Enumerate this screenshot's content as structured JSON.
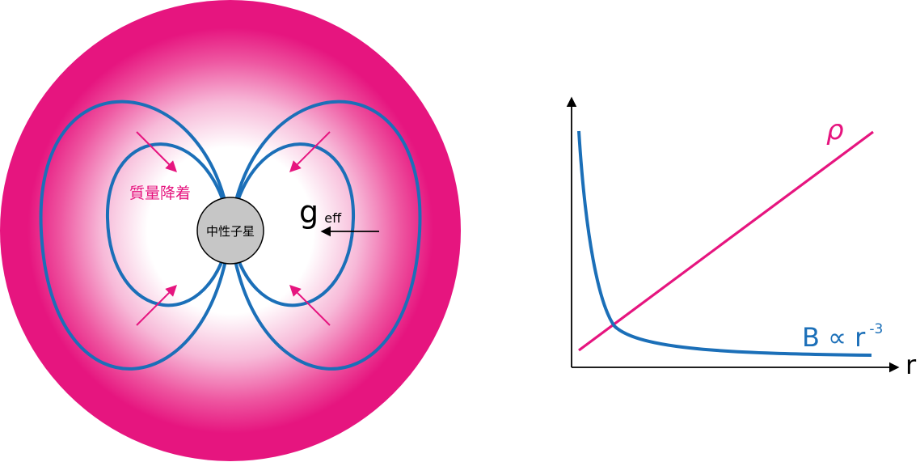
{
  "colors": {
    "magenta": "#e6157f",
    "field_blue": "#1b6fb8",
    "star_gray": "#c6c6c6",
    "black": "#000000"
  },
  "left_panel": {
    "accretion_label": "質量降着",
    "star_label": "中性子星",
    "geff_main": "g",
    "geff_sub": "eff"
  },
  "right_panel": {
    "x_axis_label": "r",
    "rho_label": "ρ",
    "b_label_main": "B ∝ r",
    "b_label_exp": "-3"
  }
}
